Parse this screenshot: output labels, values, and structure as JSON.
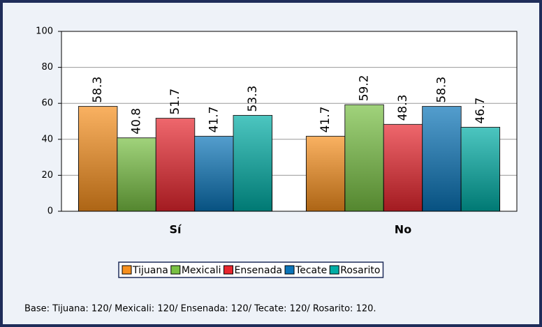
{
  "chart_data": {
    "type": "bar",
    "categories": [
      "Sí",
      "No"
    ],
    "series": [
      {
        "name": "Tijuana",
        "color": "#f7901e",
        "values": [
          58.3,
          41.7
        ]
      },
      {
        "name": "Mexicali",
        "color": "#78c043",
        "values": [
          40.8,
          59.2
        ]
      },
      {
        "name": "Ensenada",
        "color": "#e8262e",
        "values": [
          51.7,
          48.3
        ]
      },
      {
        "name": "Tecate",
        "color": "#0a74b8",
        "values": [
          41.7,
          58.3
        ]
      },
      {
        "name": "Rosarito",
        "color": "#00ada5",
        "values": [
          53.3,
          46.7
        ]
      }
    ],
    "ylim": [
      0,
      100
    ],
    "yticks": [
      0,
      20,
      40,
      60,
      80,
      100
    ],
    "grid": true,
    "legend": "bottom",
    "footnote": "Base: Tijuana: 120/ Mexicali: 120/ Ensenada: 120/ Tecate: 120/ Rosarito: 120."
  }
}
